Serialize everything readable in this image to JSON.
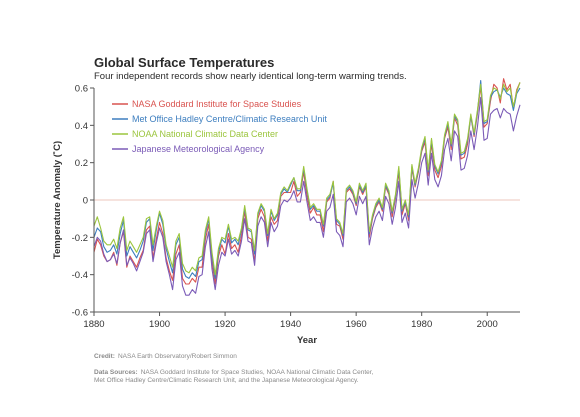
{
  "chart_data": {
    "type": "line",
    "title": "Global Surface Temperatures",
    "subtitle": "Four independent records show nearly identical long-term warming trends.",
    "xlabel": "Year",
    "ylabel": "Temperature Anomaly (˚C)",
    "xlim": [
      1880,
      2010
    ],
    "ylim": [
      -0.6,
      0.6
    ],
    "x_ticks": [
      "1880",
      "1900",
      "1920",
      "1940",
      "1960",
      "1980",
      "2000"
    ],
    "y_ticks": [
      "0.6",
      "0.4",
      "0.2",
      "0",
      "-0.2",
      "-0.4",
      "-0.6"
    ],
    "grid": false,
    "zero_line": true,
    "legend_position": "top-left",
    "x": [
      1880,
      1881,
      1882,
      1883,
      1884,
      1885,
      1886,
      1887,
      1888,
      1889,
      1890,
      1891,
      1892,
      1893,
      1894,
      1895,
      1896,
      1897,
      1898,
      1899,
      1900,
      1901,
      1902,
      1903,
      1904,
      1905,
      1906,
      1907,
      1908,
      1909,
      1910,
      1911,
      1912,
      1913,
      1914,
      1915,
      1916,
      1917,
      1918,
      1919,
      1920,
      1921,
      1922,
      1923,
      1924,
      1925,
      1926,
      1927,
      1928,
      1929,
      1930,
      1931,
      1932,
      1933,
      1934,
      1935,
      1936,
      1937,
      1938,
      1939,
      1940,
      1941,
      1942,
      1943,
      1944,
      1945,
      1946,
      1947,
      1948,
      1949,
      1950,
      1951,
      1952,
      1953,
      1954,
      1955,
      1956,
      1957,
      1958,
      1959,
      1960,
      1961,
      1962,
      1963,
      1964,
      1965,
      1966,
      1967,
      1968,
      1969,
      1970,
      1971,
      1972,
      1973,
      1974,
      1975,
      1976,
      1977,
      1978,
      1979,
      1980,
      1981,
      1982,
      1983,
      1984,
      1985,
      1986,
      1987,
      1988,
      1989,
      1990,
      1991,
      1992,
      1993,
      1994,
      1995,
      1996,
      1997,
      1998,
      1999,
      2000,
      2001,
      2002,
      2003,
      2004,
      2005,
      2006,
      2007,
      2008,
      2009,
      2010
    ],
    "series": [
      {
        "name": "NASA Goddard Institute for Space Studies",
        "color": "#d9534f",
        "values": [
          -0.28,
          -0.21,
          -0.24,
          -0.3,
          -0.33,
          -0.32,
          -0.28,
          -0.35,
          -0.23,
          -0.17,
          -0.36,
          -0.3,
          -0.33,
          -0.36,
          -0.31,
          -0.27,
          -0.16,
          -0.14,
          -0.31,
          -0.21,
          -0.12,
          -0.18,
          -0.31,
          -0.38,
          -0.43,
          -0.29,
          -0.24,
          -0.42,
          -0.45,
          -0.45,
          -0.42,
          -0.44,
          -0.36,
          -0.36,
          -0.21,
          -0.13,
          -0.33,
          -0.45,
          -0.3,
          -0.24,
          -0.29,
          -0.18,
          -0.26,
          -0.24,
          -0.28,
          -0.19,
          -0.06,
          -0.2,
          -0.21,
          -0.33,
          -0.1,
          -0.05,
          -0.09,
          -0.22,
          -0.09,
          -0.13,
          -0.11,
          0.02,
          0.04,
          0.04,
          0.04,
          0.1,
          0.02,
          0.04,
          0.15,
          0.02,
          -0.07,
          -0.04,
          -0.08,
          -0.08,
          -0.17,
          -0.01,
          0.01,
          0.1,
          -0.13,
          -0.14,
          -0.21,
          0.04,
          0.06,
          0.03,
          -0.03,
          0.07,
          0.03,
          0.07,
          -0.2,
          -0.1,
          -0.04,
          -0.01,
          -0.06,
          0.07,
          0.03,
          -0.09,
          0.01,
          0.15,
          -0.08,
          -0.02,
          -0.11,
          0.17,
          0.07,
          0.15,
          0.26,
          0.31,
          0.13,
          0.3,
          0.16,
          0.12,
          0.18,
          0.33,
          0.39,
          0.27,
          0.44,
          0.4,
          0.22,
          0.23,
          0.3,
          0.45,
          0.34,
          0.46,
          0.61,
          0.39,
          0.41,
          0.53,
          0.62,
          0.6,
          0.52,
          0.65,
          0.59,
          0.62,
          0.49,
          0.59,
          0.63
        ]
      },
      {
        "name": "Met Office Hadley Centre/Climatic Research Unit",
        "color": "#3d7ebf",
        "values": [
          -0.2,
          -0.15,
          -0.17,
          -0.25,
          -0.28,
          -0.27,
          -0.24,
          -0.29,
          -0.18,
          -0.11,
          -0.3,
          -0.25,
          -0.28,
          -0.31,
          -0.27,
          -0.22,
          -0.12,
          -0.1,
          -0.27,
          -0.16,
          -0.07,
          -0.13,
          -0.26,
          -0.33,
          -0.39,
          -0.24,
          -0.2,
          -0.37,
          -0.41,
          -0.42,
          -0.39,
          -0.41,
          -0.33,
          -0.32,
          -0.18,
          -0.1,
          -0.3,
          -0.42,
          -0.28,
          -0.21,
          -0.23,
          -0.14,
          -0.23,
          -0.21,
          -0.24,
          -0.16,
          -0.04,
          -0.16,
          -0.17,
          -0.29,
          -0.08,
          -0.03,
          -0.06,
          -0.19,
          -0.06,
          -0.11,
          -0.08,
          0.03,
          0.06,
          0.04,
          0.08,
          0.12,
          0.05,
          0.05,
          0.17,
          0.05,
          -0.05,
          -0.03,
          -0.06,
          -0.06,
          -0.14,
          0.0,
          0.02,
          0.09,
          -0.11,
          -0.13,
          -0.19,
          0.05,
          0.07,
          0.04,
          -0.02,
          0.08,
          0.04,
          0.08,
          -0.18,
          -0.09,
          -0.03,
          0.0,
          -0.05,
          0.08,
          0.04,
          -0.07,
          0.02,
          0.17,
          -0.06,
          -0.01,
          -0.09,
          0.18,
          0.08,
          0.16,
          0.27,
          0.33,
          0.15,
          0.32,
          0.18,
          0.14,
          0.2,
          0.34,
          0.41,
          0.29,
          0.45,
          0.42,
          0.24,
          0.25,
          0.32,
          0.45,
          0.35,
          0.47,
          0.64,
          0.41,
          0.42,
          0.55,
          0.58,
          0.59,
          0.55,
          0.6,
          0.57,
          0.56,
          0.48,
          0.57,
          0.6
        ]
      },
      {
        "name": "NOAA National Climatic Data Center",
        "color": "#9bc53d",
        "values": [
          -0.14,
          -0.09,
          -0.15,
          -0.22,
          -0.24,
          -0.24,
          -0.21,
          -0.26,
          -0.15,
          -0.09,
          -0.27,
          -0.22,
          -0.25,
          -0.28,
          -0.24,
          -0.2,
          -0.1,
          -0.09,
          -0.24,
          -0.14,
          -0.06,
          -0.11,
          -0.24,
          -0.3,
          -0.36,
          -0.22,
          -0.18,
          -0.34,
          -0.38,
          -0.39,
          -0.36,
          -0.38,
          -0.31,
          -0.3,
          -0.16,
          -0.09,
          -0.28,
          -0.4,
          -0.26,
          -0.2,
          -0.21,
          -0.13,
          -0.21,
          -0.2,
          -0.22,
          -0.15,
          -0.03,
          -0.15,
          -0.16,
          -0.27,
          -0.07,
          -0.02,
          -0.05,
          -0.18,
          -0.05,
          -0.1,
          -0.07,
          0.04,
          0.07,
          0.05,
          0.09,
          0.12,
          0.06,
          0.06,
          0.18,
          0.06,
          -0.04,
          -0.02,
          -0.05,
          -0.05,
          -0.13,
          0.01,
          0.03,
          0.1,
          -0.1,
          -0.12,
          -0.18,
          0.06,
          0.08,
          0.05,
          -0.01,
          0.09,
          0.05,
          0.09,
          -0.17,
          -0.08,
          -0.02,
          0.01,
          -0.04,
          0.09,
          0.05,
          -0.06,
          0.03,
          0.18,
          -0.05,
          0.0,
          -0.08,
          0.19,
          0.09,
          0.17,
          0.28,
          0.34,
          0.16,
          0.33,
          0.19,
          0.15,
          0.21,
          0.35,
          0.42,
          0.3,
          0.46,
          0.43,
          0.25,
          0.26,
          0.33,
          0.46,
          0.36,
          0.48,
          0.62,
          0.42,
          0.43,
          0.56,
          0.6,
          0.59,
          0.54,
          0.62,
          0.58,
          0.6,
          0.5,
          0.58,
          0.63
        ]
      },
      {
        "name": "Japanese Meteorological Agency",
        "color": "#7b5bb7",
        "values": [
          -0.25,
          -0.2,
          -0.22,
          -0.29,
          -0.33,
          -0.32,
          -0.29,
          -0.34,
          -0.23,
          -0.16,
          -0.35,
          -0.31,
          -0.34,
          -0.38,
          -0.33,
          -0.28,
          -0.18,
          -0.16,
          -0.33,
          -0.23,
          -0.15,
          -0.2,
          -0.33,
          -0.4,
          -0.48,
          -0.32,
          -0.28,
          -0.46,
          -0.51,
          -0.51,
          -0.48,
          -0.5,
          -0.41,
          -0.4,
          -0.25,
          -0.17,
          -0.37,
          -0.48,
          -0.35,
          -0.28,
          -0.3,
          -0.21,
          -0.29,
          -0.27,
          -0.3,
          -0.22,
          -0.1,
          -0.22,
          -0.23,
          -0.35,
          -0.14,
          -0.09,
          -0.12,
          -0.25,
          -0.12,
          -0.17,
          -0.14,
          -0.03,
          0.0,
          -0.01,
          0.01,
          0.05,
          -0.01,
          -0.01,
          0.1,
          -0.01,
          -0.11,
          -0.09,
          -0.12,
          -0.12,
          -0.2,
          -0.06,
          -0.04,
          0.03,
          -0.17,
          -0.19,
          -0.25,
          -0.01,
          0.01,
          -0.02,
          -0.08,
          0.02,
          -0.02,
          0.02,
          -0.24,
          -0.15,
          -0.09,
          -0.06,
          -0.11,
          0.02,
          -0.02,
          -0.13,
          -0.04,
          0.1,
          -0.12,
          -0.07,
          -0.15,
          0.11,
          0.01,
          0.09,
          0.2,
          0.25,
          0.08,
          0.25,
          0.11,
          0.07,
          0.13,
          0.27,
          0.33,
          0.21,
          0.37,
          0.34,
          0.16,
          0.17,
          0.24,
          0.37,
          0.27,
          0.39,
          0.55,
          0.32,
          0.33,
          0.46,
          0.48,
          0.49,
          0.44,
          0.49,
          0.47,
          0.46,
          0.37,
          0.45,
          0.51
        ]
      }
    ]
  },
  "credit": {
    "label": "Credit:",
    "text": "NASA Earth Observatory/Robert Simmon"
  },
  "sources": {
    "label": "Data Sources:",
    "line1": "NASA Goddard Institute for Space Studies, NOAA National Climatic Data Center,",
    "line2": "Met Office Hadley Centre/Climatic Research Unit, and the Japanese Meteorological Agency."
  }
}
